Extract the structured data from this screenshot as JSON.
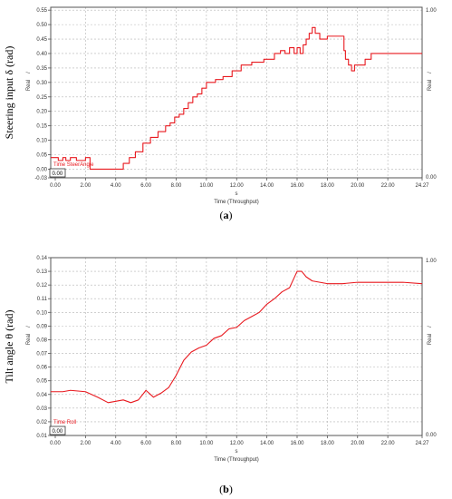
{
  "chart_data": [
    {
      "id": "a",
      "type": "line",
      "caption_open": "(",
      "caption_letter": "a",
      "caption_close": ")",
      "ylabel": "Steering input δ (rad)",
      "xlabel_unit": "s",
      "xlabel": "Time (Throughput)",
      "right_axis_label_top": "/",
      "right_axis_label": "Real",
      "right_ticks": [
        "1.00",
        "0.00"
      ],
      "legend_label": "Time SteerAngle",
      "cursor_readout": "0.00",
      "xlim": [
        -0.3,
        24.27
      ],
      "ylim": [
        -0.03,
        0.56
      ],
      "x_ticks": [
        "0.00",
        "2.00",
        "4.00",
        "6.00",
        "8.00",
        "10.00",
        "12.00",
        "14.00",
        "16.00",
        "18.00",
        "20.00",
        "22.00",
        "24.27"
      ],
      "x_tick_values": [
        0,
        2,
        4,
        6,
        8,
        10,
        12,
        14,
        16,
        18,
        20,
        22,
        24.27
      ],
      "y_ticks": [
        "-0.03",
        "0.00",
        "0.05",
        "0.10",
        "0.15",
        "0.20",
        "0.25",
        "0.30",
        "0.35",
        "0.40",
        "0.45",
        "0.50",
        "0.55"
      ],
      "y_tick_values": [
        -0.03,
        0,
        0.05,
        0.1,
        0.15,
        0.2,
        0.25,
        0.3,
        0.35,
        0.4,
        0.45,
        0.5,
        0.55
      ],
      "series": [
        {
          "color": "#e8191f",
          "step": true,
          "x": [
            -0.3,
            0.2,
            0.5,
            0.7,
            1.0,
            1.4,
            2.0,
            2.3,
            4.15,
            4.5,
            4.9,
            5.3,
            5.8,
            6.3,
            6.8,
            7.3,
            7.6,
            7.9,
            8.2,
            8.5,
            8.8,
            9.1,
            9.4,
            9.7,
            10.0,
            10.6,
            11.1,
            11.7,
            12.3,
            13.0,
            13.8,
            14.5,
            14.9,
            15.2,
            15.5,
            15.8,
            16.0,
            16.2,
            16.4,
            16.6,
            16.8,
            17.0,
            17.2,
            17.5,
            17.8,
            18.0,
            18.3,
            18.6,
            18.9,
            19.1,
            19.2,
            19.4,
            19.6,
            19.8,
            20.0,
            20.5,
            20.9,
            24.27
          ],
          "y": [
            0.04,
            0.03,
            0.04,
            0.03,
            0.04,
            0.03,
            0.04,
            0.0,
            0.0,
            0.02,
            0.04,
            0.06,
            0.09,
            0.11,
            0.13,
            0.15,
            0.16,
            0.18,
            0.19,
            0.21,
            0.23,
            0.25,
            0.26,
            0.28,
            0.3,
            0.31,
            0.32,
            0.34,
            0.36,
            0.37,
            0.38,
            0.4,
            0.41,
            0.4,
            0.42,
            0.4,
            0.42,
            0.4,
            0.43,
            0.45,
            0.47,
            0.49,
            0.47,
            0.45,
            0.45,
            0.46,
            0.46,
            0.46,
            0.46,
            0.41,
            0.38,
            0.36,
            0.34,
            0.36,
            0.36,
            0.38,
            0.4,
            0.4
          ]
        }
      ]
    },
    {
      "id": "b",
      "type": "line",
      "caption_open": "(",
      "caption_letter": "b",
      "caption_close": ")",
      "ylabel": "Tilt angle θ (rad)",
      "xlabel_unit": "s",
      "xlabel": "Time (Throughput)",
      "right_axis_label_top": "/",
      "right_axis_label": "Real",
      "right_ticks": [
        "1.00",
        "0.00"
      ],
      "legend_label": "Time Roll",
      "cursor_readout": "0.00",
      "xlim": [
        -0.3,
        24.27
      ],
      "ylim": [
        0.01,
        0.14
      ],
      "x_ticks": [
        "0.00",
        "2.00",
        "4.00",
        "6.00",
        "8.00",
        "10.00",
        "12.00",
        "14.00",
        "16.00",
        "18.00",
        "20.00",
        "22.00",
        "24.27"
      ],
      "x_tick_values": [
        0,
        2,
        4,
        6,
        8,
        10,
        12,
        14,
        16,
        18,
        20,
        22,
        24.27
      ],
      "y_ticks": [
        "0.01",
        "0.02",
        "0.03",
        "0.04",
        "0.05",
        "0.06",
        "0.07",
        "0.08",
        "0.09",
        "0.10",
        "0.11",
        "0.12",
        "0.13",
        "0.14"
      ],
      "y_tick_values": [
        0.01,
        0.02,
        0.03,
        0.04,
        0.05,
        0.06,
        0.07,
        0.08,
        0.09,
        0.1,
        0.11,
        0.12,
        0.13,
        0.14
      ],
      "series": [
        {
          "color": "#e8191f",
          "step": false,
          "x": [
            -0.3,
            0.5,
            1.0,
            2.0,
            2.8,
            3.5,
            4.0,
            4.5,
            5.0,
            5.5,
            6.0,
            6.5,
            7.0,
            7.5,
            8.0,
            8.5,
            9.0,
            9.5,
            10.0,
            10.5,
            11.0,
            11.5,
            12.0,
            12.5,
            13.0,
            13.5,
            14.0,
            14.5,
            15.0,
            15.5,
            16.0,
            16.3,
            16.6,
            17.0,
            17.5,
            18.0,
            19.0,
            20.0,
            21.0,
            22.0,
            23.0,
            24.27
          ],
          "y": [
            0.042,
            0.042,
            0.043,
            0.042,
            0.038,
            0.034,
            0.035,
            0.036,
            0.034,
            0.036,
            0.043,
            0.038,
            0.041,
            0.045,
            0.054,
            0.065,
            0.071,
            0.074,
            0.076,
            0.081,
            0.083,
            0.088,
            0.089,
            0.094,
            0.097,
            0.1,
            0.106,
            0.11,
            0.115,
            0.118,
            0.13,
            0.13,
            0.126,
            0.123,
            0.122,
            0.121,
            0.121,
            0.122,
            0.122,
            0.122,
            0.122,
            0.121
          ]
        }
      ]
    }
  ]
}
